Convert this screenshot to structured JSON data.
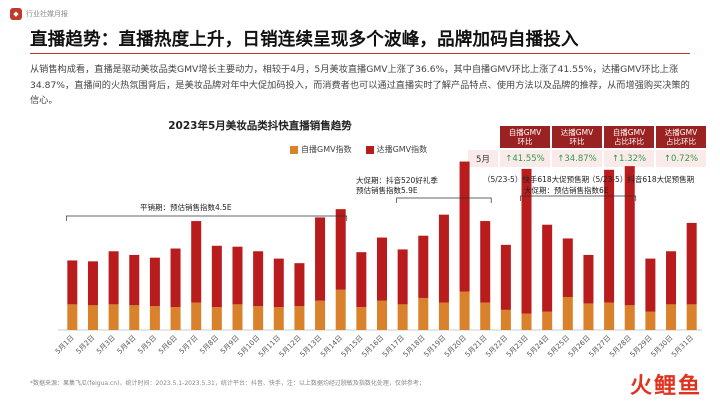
{
  "header": {
    "source_label": "行业社媒月报",
    "logo_icon": "logo-icon"
  },
  "page": {
    "title": "直播趋势：直播热度上升，日销连续呈现多个波峰，品牌加码自播投入",
    "intro": "从销售构成看，直播是驱动美妆品类GMV增长主要动力，相较于4月，5月美妆直播GMV上涨了36.6%，其中自播GMV环比上涨了41.55%，达播GMV环比上涨34.87%，直播间的火热氛围背后，是美妆品牌对年中大促加码投入，而消费者也可以通过直播实时了解产品特点、使用方法以及品牌的推荐，从而增强购买决策的信心。"
  },
  "kpi_table": {
    "headers": [
      "自播GMV\n环比",
      "达播GMV\n环比",
      "自播GMV\n占比环比",
      "达播GMV\n占比环比"
    ],
    "row_label": "5月",
    "values": [
      "41.55%",
      "34.87%",
      "1.32%",
      "0.72%"
    ],
    "arrow": "↑"
  },
  "annotations": {
    "flat_period": "平销期：预估销售指数4.5E",
    "big_promo_1": "大促期：抖音520好礼季\n预估销售指数5.9E",
    "big_promo_2_a": "（5/23-5）快手618大促预售期",
    "big_promo_2_b": "（5/23-5）抖音618大促预售期",
    "big_promo_2_c": "大促期：预估销售指数6E"
  },
  "footer": {
    "note": "*数据来源：果集飞瓜(feigua.cn)，统计时间：2023.5.1-2023.5.31，统计平台：抖音、快手，注：以上数据均经过脱敏及指数化处理，仅供参考；",
    "brand": "火鲤鱼"
  },
  "colors": {
    "self_broadcast": "#d9822b",
    "talent_broadcast": "#b81c1c",
    "accent": "#9b2222",
    "positive": "#2e9b4a"
  },
  "chart_data": {
    "type": "bar",
    "stacked": true,
    "title": "2023年5月美妆品类抖快直播销售趋势",
    "categories": [
      "5月1日",
      "5月2日",
      "5月3日",
      "5月4日",
      "5月5日",
      "5月6日",
      "5月7日",
      "5月8日",
      "5月9日",
      "5月10日",
      "5月11日",
      "5月12日",
      "5月13日",
      "5月14日",
      "5月15日",
      "5月16日",
      "5月17日",
      "5月18日",
      "5月19日",
      "5月20日",
      "5月21日",
      "5月22日",
      "5月23日",
      "5月24日",
      "5月25日",
      "5月26日",
      "5月27日",
      "5月28日",
      "5月29日",
      "5月30日",
      "5月31日"
    ],
    "series": [
      {
        "name": "自播GMV指数",
        "values": [
          140,
          135,
          140,
          135,
          130,
          125,
          150,
          125,
          140,
          130,
          125,
          130,
          160,
          220,
          125,
          160,
          140,
          175,
          150,
          210,
          150,
          110,
          90,
          100,
          180,
          145,
          150,
          135,
          100,
          140,
          140
        ]
      },
      {
        "name": "达播GMV指数",
        "values": [
          240,
          240,
          290,
          275,
          265,
          320,
          445,
          335,
          315,
          300,
          265,
          235,
          455,
          440,
          300,
          345,
          300,
          340,
          480,
          710,
          445,
          355,
          790,
          475,
          320,
          265,
          725,
          760,
          290,
          290,
          445
        ]
      }
    ],
    "ylim": [
      0,
      950
    ],
    "grid": false,
    "legend_position": "top"
  }
}
